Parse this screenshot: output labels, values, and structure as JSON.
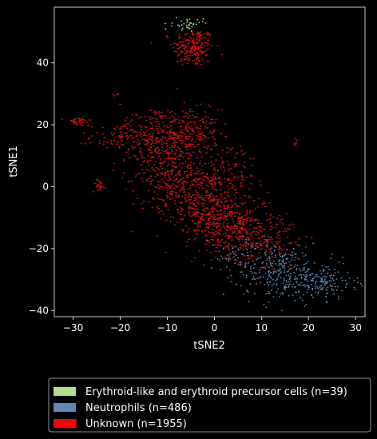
{
  "chart_data": {
    "type": "scatter",
    "xlabel": "tSNE2",
    "ylabel": "tSNE1",
    "xlim": [
      -34,
      32
    ],
    "ylim": [
      -42,
      58
    ],
    "xticks": [
      -30,
      -20,
      -10,
      0,
      10,
      20,
      30
    ],
    "yticks": [
      -40,
      -20,
      0,
      20,
      40
    ],
    "xtick_labels": [
      "−30",
      "−20",
      "−10",
      "0",
      "10",
      "20",
      "30"
    ],
    "ytick_labels": [
      "−40",
      "−20",
      "0",
      "20",
      "40"
    ],
    "grid": false,
    "legend_position": "bottom-outside",
    "background": "#000000",
    "series": [
      {
        "name": "Erythroid-like and erythroid precursor cells (n=39)",
        "color": "#b2e08a",
        "count": 39,
        "clusters": [
          {
            "cx": -5.5,
            "cy": 52.5,
            "sx": 1.6,
            "sy": 0.9,
            "n": 39
          }
        ]
      },
      {
        "name": "Neutrophils (n=486)",
        "color": "#5b8bb5",
        "count": 486,
        "clusters": [
          {
            "cx": 14,
            "cy": -27,
            "sx": 4.5,
            "sy": 4.5,
            "n": 260
          },
          {
            "cx": 22,
            "cy": -31,
            "sx": 4.0,
            "sy": 2.8,
            "n": 170
          },
          {
            "cx": 5,
            "cy": -23,
            "sx": 3.0,
            "sy": 3.5,
            "n": 56
          }
        ]
      },
      {
        "name": "Unknown (n=1955)",
        "color": "#ff0000",
        "count": 1955,
        "clusters": [
          {
            "cx": -4.5,
            "cy": 45,
            "sx": 2.2,
            "sy": 3.2,
            "n": 200
          },
          {
            "cx": -6,
            "cy": 17,
            "sx": 3.5,
            "sy": 4.0,
            "n": 260
          },
          {
            "cx": -12,
            "cy": 13,
            "sx": 3.5,
            "sy": 4.5,
            "n": 140
          },
          {
            "cx": -19.5,
            "cy": 16,
            "sx": 3.5,
            "sy": 2.2,
            "n": 90
          },
          {
            "cx": -29,
            "cy": 21,
            "sx": 1.4,
            "sy": 0.7,
            "n": 35
          },
          {
            "cx": -24.5,
            "cy": 0.5,
            "sx": 0.7,
            "sy": 1.0,
            "n": 25
          },
          {
            "cx": -9,
            "cy": 4,
            "sx": 4.0,
            "sy": 5.0,
            "n": 230
          },
          {
            "cx": -3,
            "cy": -4,
            "sx": 4.5,
            "sy": 5.0,
            "n": 300
          },
          {
            "cx": 3,
            "cy": -12,
            "sx": 4.5,
            "sy": 5.0,
            "n": 330
          },
          {
            "cx": 8,
            "cy": -16,
            "sx": 4.5,
            "sy": 4.0,
            "n": 180
          },
          {
            "cx": 3,
            "cy": 5,
            "sx": 3.0,
            "sy": 5.0,
            "n": 90
          },
          {
            "cx": -14,
            "cy": 22,
            "sx": 3.0,
            "sy": 2.5,
            "n": 40
          },
          {
            "cx": 17.5,
            "cy": 14,
            "sx": 0.3,
            "sy": 0.6,
            "n": 6
          },
          {
            "cx": -21,
            "cy": 29.5,
            "sx": 0.3,
            "sy": 0.4,
            "n": 4
          },
          {
            "cx": 12,
            "cy": -20,
            "sx": 3.0,
            "sy": 3.0,
            "n": 25
          }
        ]
      }
    ]
  }
}
